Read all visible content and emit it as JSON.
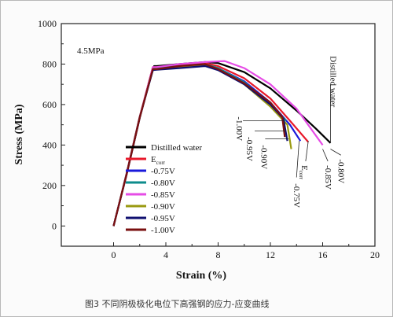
{
  "chart_data": {
    "type": "line",
    "xlabel": "Strain (%)",
    "ylabel": "Stress (MPa)",
    "xlim": [
      -4,
      20
    ],
    "ylim": [
      -100,
      1000
    ],
    "xticks": [
      0,
      4,
      8,
      12,
      16,
      20
    ],
    "yticks": [
      0,
      200,
      400,
      600,
      800,
      1000
    ],
    "annotation": "4.5MPa",
    "legend_position": "lower-left",
    "series": [
      {
        "name": "Distilled water",
        "color": "#000000",
        "x": [
          0,
          1,
          2,
          3.1,
          3.3,
          5,
          7,
          8,
          10,
          12,
          14,
          15.5,
          16.6
        ],
        "y": [
          0,
          260,
          540,
          790,
          790,
          800,
          810,
          805,
          760,
          680,
          570,
          480,
          410
        ]
      },
      {
        "name": "E_corr",
        "color": "#e8192b",
        "x": [
          0,
          1,
          2,
          3.0,
          3.2,
          5,
          7,
          8,
          10,
          12,
          13.5,
          14.9
        ],
        "y": [
          0,
          260,
          540,
          785,
          785,
          795,
          805,
          790,
          730,
          630,
          520,
          415
        ]
      },
      {
        "name": "-0.75V",
        "color": "#1a1adb",
        "x": [
          0,
          1,
          2,
          3.0,
          3.3,
          5,
          7,
          8,
          10,
          12,
          13.5,
          14.3
        ],
        "y": [
          0,
          255,
          535,
          780,
          778,
          785,
          795,
          780,
          715,
          610,
          500,
          420
        ]
      },
      {
        "name": "-0.80V",
        "color": "#0e8c8c",
        "x": [
          0,
          1,
          2,
          3.0,
          3.3,
          5,
          7,
          8,
          10,
          12,
          13.2
        ],
        "y": [
          0,
          255,
          535,
          780,
          778,
          790,
          800,
          780,
          710,
          600,
          520
        ]
      },
      {
        "name": "-0.85V",
        "color": "#e64ce6",
        "x": [
          0,
          1,
          2,
          3.0,
          3.3,
          5,
          7,
          8.5,
          10,
          12,
          14,
          16.0
        ],
        "y": [
          0,
          255,
          535,
          785,
          785,
          800,
          810,
          815,
          780,
          700,
          580,
          400
        ]
      },
      {
        "name": "-0.90V",
        "color": "#9a9a10",
        "x": [
          0,
          1,
          2,
          3.0,
          3.3,
          5,
          7,
          8,
          10,
          12,
          13.3,
          13.6
        ],
        "y": [
          0,
          255,
          535,
          775,
          775,
          785,
          795,
          775,
          700,
          590,
          500,
          380
        ]
      },
      {
        "name": "-0.95V",
        "color": "#101070",
        "x": [
          0,
          1,
          2,
          3.0,
          3.3,
          5,
          7,
          8,
          10,
          12,
          13.0,
          13.3
        ],
        "y": [
          0,
          255,
          535,
          770,
          772,
          780,
          790,
          770,
          700,
          600,
          530,
          420
        ]
      },
      {
        "name": "-1.00V",
        "color": "#7a1010",
        "x": [
          0,
          1,
          2,
          3.0,
          3.3,
          5,
          7,
          8,
          10,
          12,
          12.9,
          13.1
        ],
        "y": [
          0,
          255,
          535,
          775,
          775,
          790,
          800,
          775,
          705,
          610,
          540,
          440
        ]
      }
    ],
    "curve_labels": [
      {
        "text": "Distilled water",
        "x": 16.6,
        "y": 840,
        "rotate": 90
      },
      {
        "text": "-0.80V",
        "x": 17.2,
        "y": 330,
        "rotate": 90
      },
      {
        "text": "-0.85V",
        "x": 16.2,
        "y": 300,
        "rotate": 90
      },
      {
        "text": "E",
        "sub": "corr",
        "x": 14.4,
        "y": 300,
        "rotate": 90
      },
      {
        "text": "-0.75V",
        "x": 13.8,
        "y": 210,
        "rotate": 90
      },
      {
        "text": "-1.00V",
        "x": 9.4,
        "y": 540,
        "rotate": 90
      },
      {
        "text": "-0.95V",
        "x": 10.2,
        "y": 440,
        "rotate": 90
      },
      {
        "text": "-0.90V",
        "x": 11.3,
        "y": 400,
        "rotate": 90
      }
    ]
  },
  "caption": "图3 不同阴极极化电位下高强钢的应力-应变曲线"
}
